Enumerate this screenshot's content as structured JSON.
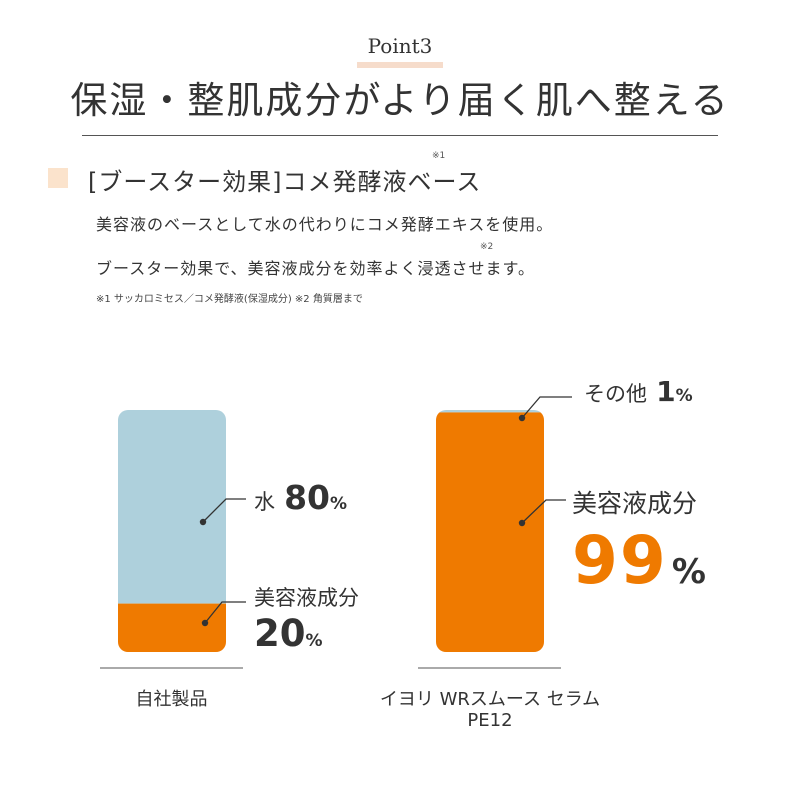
{
  "header": {
    "point_label": "Point3",
    "title": "保湿・整肌成分がより届く肌へ整える"
  },
  "section": {
    "heading": "[ブースター効果]コメ発酵液ベース",
    "heading_note_mark": "※1",
    "body_line_1": "美容液のベースとして水の代わりにコメ発酵エキスを使用。",
    "body_line_2": "ブースター効果で、美容液成分を効率よく浸透させます。",
    "body_note_mark": "※2",
    "footnote": "※1 サッカロミセス／コメ発酵液(保湿成分) ※2 角質層まで"
  },
  "colors": {
    "water": "#aed0dc",
    "serum": "#ef7a00",
    "text": "#333333",
    "accent_text": "#ef7a00",
    "square": "#fbe3cc"
  },
  "chart_data": {
    "type": "bar",
    "stacked": true,
    "normalized_percent": true,
    "categories": [
      "自社製品",
      "イヨリ WRスムース セラム PE12"
    ],
    "series": [
      {
        "name": "美容液成分",
        "values": [
          20,
          99
        ]
      },
      {
        "name": "水",
        "values": [
          80,
          null
        ]
      },
      {
        "name": "その他",
        "values": [
          null,
          1
        ]
      }
    ],
    "annotations": {
      "left_water_label": "水",
      "left_water_value": "80",
      "left_serum_label": "美容液成分",
      "left_serum_value": "20",
      "right_other_label": "その他",
      "right_other_value": "1",
      "right_serum_label": "美容液成分",
      "right_serum_value": "99",
      "unit": "%"
    },
    "category_labels": {
      "left": "自社製品",
      "right_line_1": "イヨリ WRスムース セラム",
      "right_line_2": "PE12"
    },
    "ylim": [
      0,
      100
    ]
  }
}
